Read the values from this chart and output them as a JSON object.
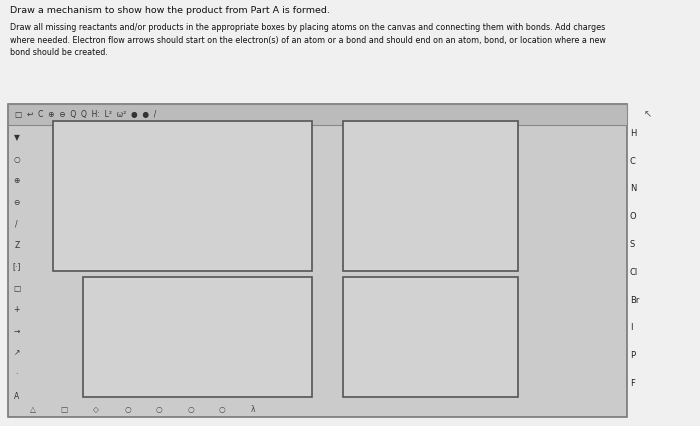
{
  "title_line1": "Draw a mechanism to show how the product from Part A is formed.",
  "title_line2": "Draw all missing reactants and/or products in the appropriate boxes by placing atoms on the canvas and connecting them with bonds. Add charges\nwhere needed. Electron flow arrows should start on the electron(s) of an atom or a bond and should end on an atom, bond, or location where a new\nbond should be created.",
  "bg_color": "#f0f0f0",
  "canvas_bg": "#cbcbcb",
  "box_facecolor": "#d2d2d2",
  "box_edgecolor": "#555555",
  "red_color": "#c03030",
  "black_color": "#111111",
  "arrow_color": "#222222",
  "right_sidebar": [
    "H",
    "C",
    "N",
    "O",
    "S",
    "Cl",
    "Br",
    "I",
    "P",
    "F"
  ],
  "bottom_icons": [
    "△",
    "□",
    "◇",
    "○",
    "○",
    "○",
    "○",
    "λ"
  ],
  "toolbar_text": "□  ↩  C  ⊕  ⊖  Q  Q  H:  L²  ω²  ●  ●  /"
}
